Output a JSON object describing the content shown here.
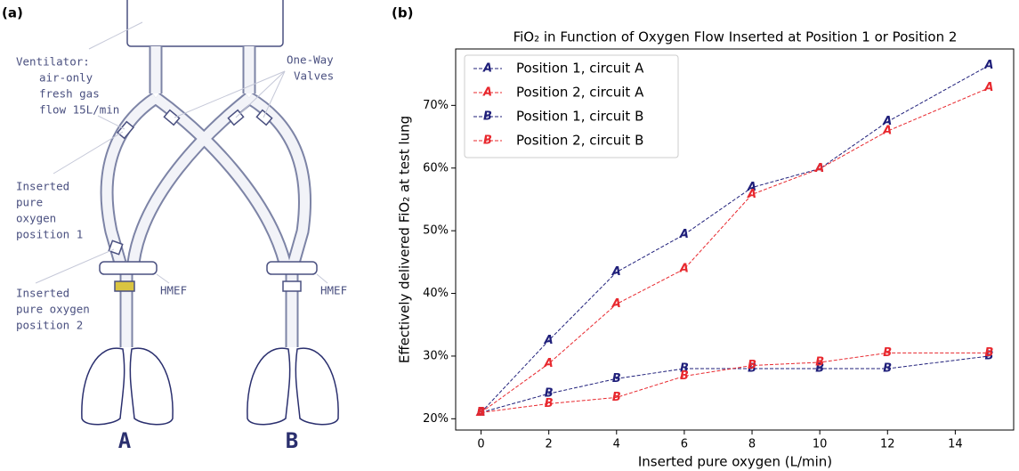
{
  "panels": [
    "(a)",
    "(b)"
  ],
  "diagram": {
    "ventilator_label": [
      "Ventilator:",
      "air-only",
      "fresh gas",
      "flow 15L/min"
    ],
    "valves_label": [
      "One-Way",
      "Valves"
    ],
    "position1_label": [
      "Inserted",
      "pure",
      "oxygen",
      "position 1"
    ],
    "position2_label": [
      "Inserted",
      "pure oxygen",
      "position 2"
    ],
    "hmef_labels": [
      "HMEF",
      "HMEF"
    ],
    "lung_labels": [
      "A",
      "B"
    ]
  },
  "chart_data": {
    "type": "line",
    "title": "FiO₂ in Function of Oxygen Flow Inserted at Position 1 or Position 2",
    "x_label": "Inserted pure oxygen (L/min)",
    "y_label": "Effectively delivered FiO₂ at test lung",
    "x": [
      0,
      2,
      4,
      6,
      8,
      10,
      12,
      15
    ],
    "series": [
      {
        "name": "Position 1, circuit A",
        "marker": "A",
        "color": "#1f1f7a",
        "values": [
          21,
          32.5,
          43.4,
          49.4,
          56.9,
          59.9,
          67.4,
          76.4
        ]
      },
      {
        "name": "Position 2, circuit A",
        "marker": "A",
        "color": "#e8282e",
        "values": [
          21,
          28.8,
          38.3,
          43.9,
          55.8,
          59.9,
          65.9,
          72.8
        ]
      },
      {
        "name": "Position 1, circuit B",
        "marker": "B",
        "color": "#1f1f7a",
        "values": [
          21,
          24,
          26.4,
          28,
          28,
          28,
          28,
          30
        ]
      },
      {
        "name": "Position 2, circuit B",
        "marker": "B",
        "color": "#e8282e",
        "values": [
          21,
          22.4,
          23.4,
          26.8,
          28.5,
          29,
          30.5,
          30.5
        ]
      }
    ],
    "xlim": [
      -0.75,
      15.75
    ],
    "ylim": [
      18.2,
      79
    ],
    "xticks": [
      0,
      2,
      4,
      6,
      8,
      10,
      12,
      14
    ],
    "yticks": [
      {
        "value": 20,
        "label": "20%"
      },
      {
        "value": 30,
        "label": "30%"
      },
      {
        "value": 40,
        "label": "40%"
      },
      {
        "value": 50,
        "label": "50%"
      },
      {
        "value": 60,
        "label": "60%"
      },
      {
        "value": 70,
        "label": "70%"
      }
    ],
    "grid": false,
    "legend": "upper left"
  }
}
